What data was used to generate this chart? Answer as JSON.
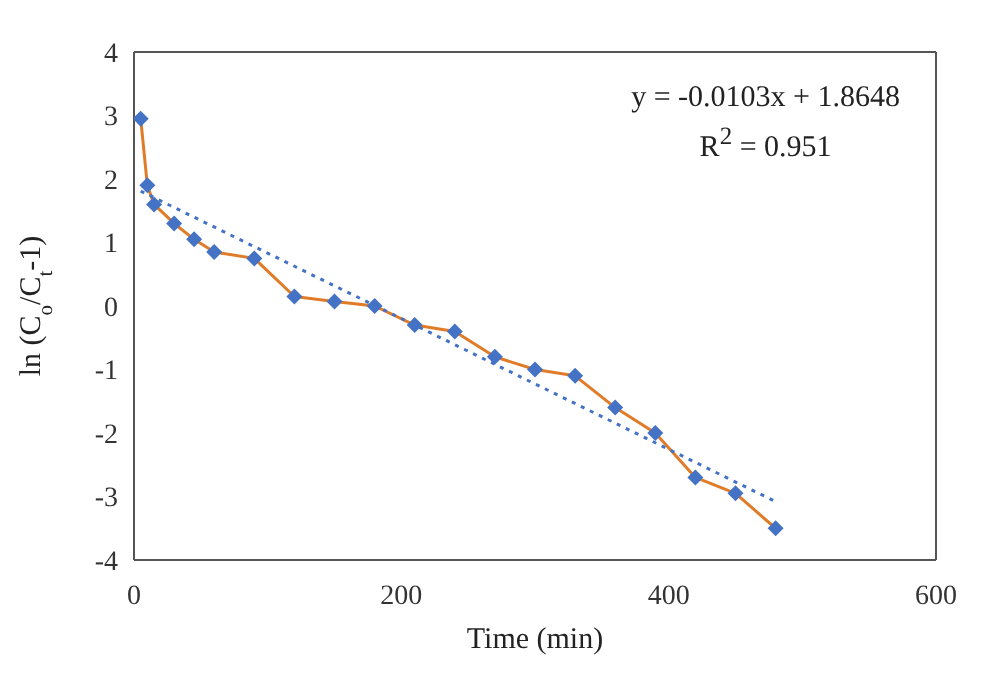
{
  "chart_data": {
    "type": "line",
    "xlabel": "Time (min)",
    "ylabel": "ln (C$_{o}$/C$_{t}$-1)",
    "xlim": [
      0,
      600
    ],
    "xticks": [
      0,
      200,
      400,
      600
    ],
    "ylim": [
      -4,
      4
    ],
    "yticks": [
      -4,
      -3,
      -2,
      -1,
      0,
      1,
      2,
      3,
      4
    ],
    "annotations": [
      "y = -0.0103x + 1.8648",
      "R$^{2}$ = 0.951"
    ],
    "series": [
      {
        "color": "#e07b28",
        "marker": "diamond",
        "line_style": "solid",
        "colors": [
          "#4472c4",
          "#4472c4",
          "#4472c4",
          "#4472c4",
          "#4472c4",
          "#4472c4",
          "#4472c4",
          "#4472c4",
          "#4472c4",
          "#4472c4",
          "#4472c4",
          "#4472c4",
          "#4472c4",
          "#4472c4",
          "#4472c4",
          "#4472c4",
          "#4472c4",
          "#4472c4",
          "#4472c4",
          "#4472c4"
        ],
        "x": [
          5,
          10,
          15,
          30,
          45,
          60,
          90,
          120,
          150,
          180,
          210,
          240,
          270,
          300,
          330,
          360,
          390,
          420,
          450,
          480
        ],
        "values": [
          2.95,
          1.9,
          1.6,
          1.3,
          1.05,
          0.85,
          0.75,
          0.15,
          0.07,
          0.0,
          -0.3,
          -0.4,
          -0.8,
          -1.0,
          -1.1,
          -1.6,
          -2.0,
          -2.7,
          -2.95,
          -3.5
        ]
      },
      {
        "color": "#4472c4",
        "marker": "none",
        "line_style": "dotted",
        "x": [
          5,
          480
        ],
        "values": [
          1.81,
          -3.08
        ]
      }
    ]
  }
}
